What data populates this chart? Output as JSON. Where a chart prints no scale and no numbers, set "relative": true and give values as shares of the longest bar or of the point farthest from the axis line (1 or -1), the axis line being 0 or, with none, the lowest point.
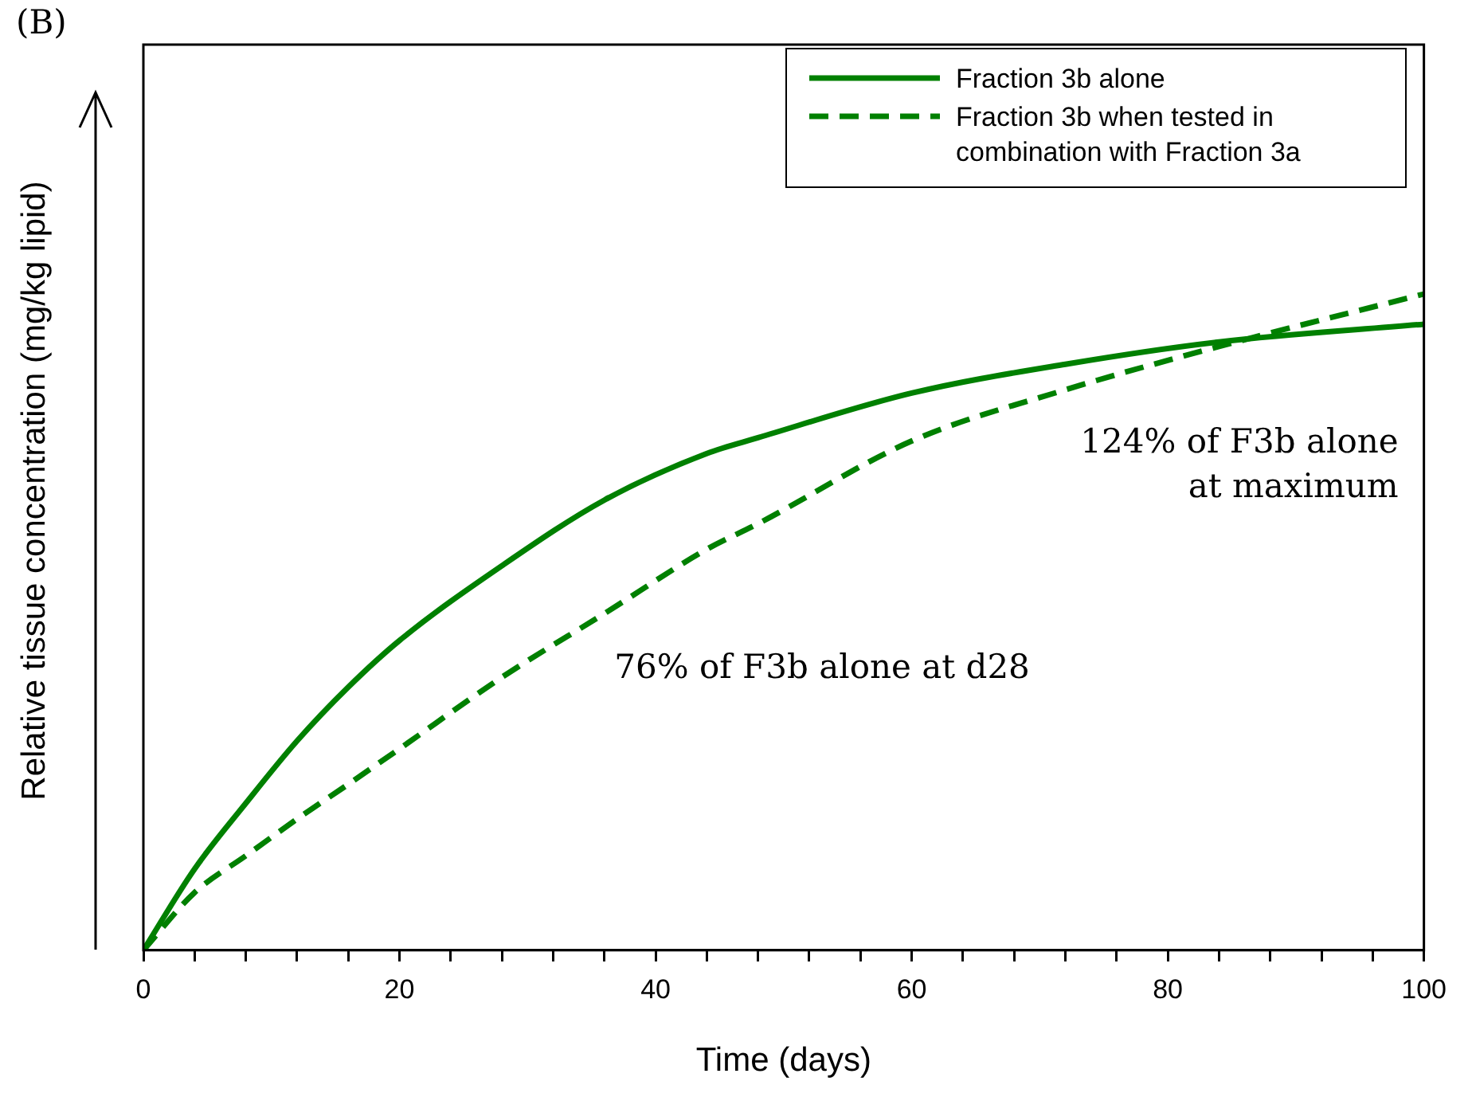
{
  "chart_data": {
    "type": "line",
    "xlabel": "Time (days)",
    "ylabel": "Relative tissue concentration (mg/kg lipid)",
    "relative": true,
    "x": [
      0,
      4,
      8,
      12,
      16,
      20,
      28,
      36,
      44,
      48,
      60,
      72,
      84,
      100
    ],
    "xlim": [
      0,
      100
    ],
    "xticks": [
      0,
      {
        "value": 4,
        "label": null
      },
      {
        "value": 8,
        "label": null
      },
      {
        "value": 12,
        "label": null
      },
      {
        "value": 16,
        "label": null
      },
      20,
      {
        "value": 24,
        "label": null
      },
      {
        "value": 28,
        "label": null
      },
      {
        "value": 32,
        "label": null
      },
      {
        "value": 36,
        "label": null
      },
      40,
      {
        "value": 44,
        "label": null
      },
      {
        "value": 48,
        "label": null
      },
      {
        "value": 52,
        "label": null
      },
      {
        "value": 56,
        "label": null
      },
      60,
      {
        "value": 64,
        "label": null
      },
      {
        "value": 68,
        "label": null
      },
      {
        "value": 72,
        "label": null
      },
      {
        "value": 76,
        "label": null
      },
      80,
      {
        "value": 84,
        "label": null
      },
      {
        "value": 88,
        "label": null
      },
      {
        "value": 92,
        "label": null
      },
      {
        "value": 96,
        "label": null
      },
      100
    ],
    "series": [
      {
        "name": "Fraction 3b alone",
        "color": "#008000",
        "line_style": "solid",
        "values": [
          0,
          0.124,
          0.224,
          0.319,
          0.401,
          0.472,
          0.586,
          0.686,
          0.757,
          0.781,
          0.849,
          0.893,
          0.927,
          0.954
        ]
      },
      {
        "name": "Fraction 3b when tested in combination with Fraction 3a",
        "color": "#008000",
        "line_style": "dashed",
        "values": [
          0,
          0.088,
          0.144,
          0.2,
          0.253,
          0.307,
          0.416,
          0.513,
          0.611,
          0.65,
          0.776,
          0.854,
          0.92,
          1
        ]
      }
    ],
    "legend": "top right",
    "marker": "none",
    "annotations": [
      "(B)",
      "76% of F3b alone at d28",
      "124% of F3b alone at maximum"
    ]
  }
}
